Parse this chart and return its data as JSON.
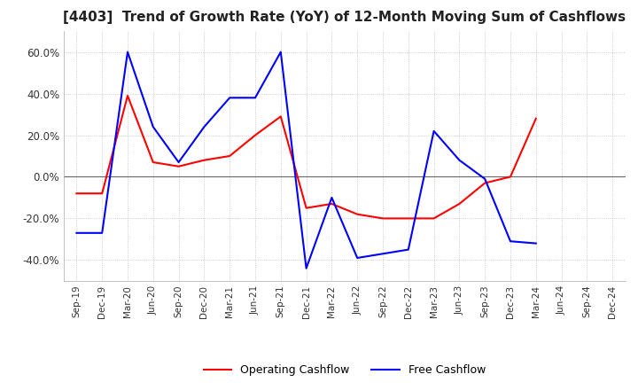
{
  "title": "[4403]  Trend of Growth Rate (YoY) of 12-Month Moving Sum of Cashflows",
  "title_fontsize": 11,
  "ylim": [
    -0.5,
    0.7
  ],
  "yticks": [
    -0.4,
    -0.2,
    0.0,
    0.2,
    0.4,
    0.6
  ],
  "background_color": "#ffffff",
  "grid_color": "#bbbbbb",
  "grid_style": "dotted",
  "x_labels": [
    "Sep-19",
    "Dec-19",
    "Mar-20",
    "Jun-20",
    "Sep-20",
    "Dec-20",
    "Mar-21",
    "Jun-21",
    "Sep-21",
    "Dec-21",
    "Mar-22",
    "Jun-22",
    "Sep-22",
    "Dec-22",
    "Mar-23",
    "Jun-23",
    "Sep-23",
    "Dec-23",
    "Mar-24",
    "Jun-24",
    "Sep-24",
    "Dec-24"
  ],
  "operating_cashflow": [
    -0.08,
    -0.08,
    0.39,
    0.07,
    0.05,
    0.08,
    0.1,
    0.2,
    0.29,
    -0.15,
    -0.13,
    -0.18,
    -0.2,
    -0.2,
    -0.2,
    -0.13,
    -0.03,
    0.0,
    0.28,
    null,
    null,
    null
  ],
  "free_cashflow": [
    -0.27,
    -0.27,
    0.6,
    0.24,
    0.07,
    0.24,
    0.38,
    0.38,
    0.6,
    -0.44,
    -0.1,
    -0.39,
    -0.37,
    -0.35,
    0.22,
    0.08,
    -0.01,
    -0.31,
    -0.32,
    null,
    null,
    null
  ],
  "op_color": "#ff0000",
  "free_color": "#0000ff",
  "legend_labels": [
    "Operating Cashflow",
    "Free Cashflow"
  ]
}
